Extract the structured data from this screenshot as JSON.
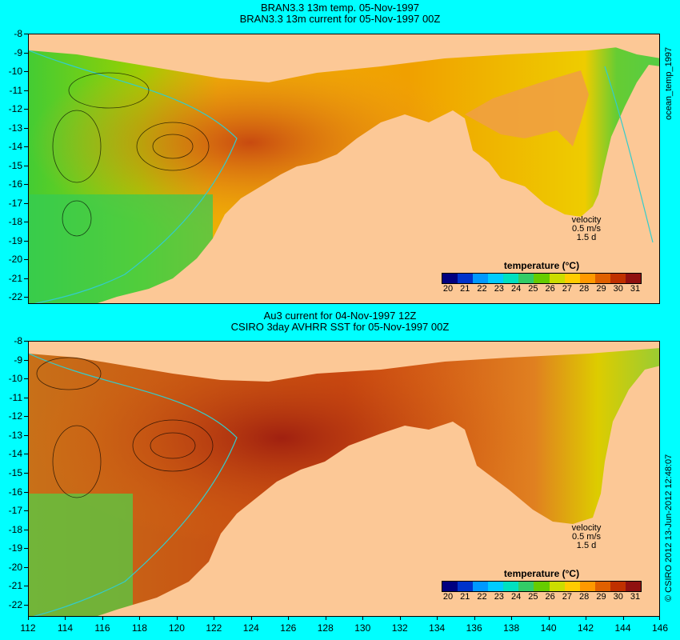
{
  "top_panel": {
    "title_line1": "BRAN3.3 13m temp. 05-Nov-1997",
    "title_line2": "BRAN3.3 13m current for 05-Nov-1997 00Z",
    "side_label": "ocean_temp_1997",
    "legend_title": "temperature (°C)",
    "velocity_label": "velocity",
    "velocity_value": "0.5 m/s",
    "velocity_time": "1.5 d"
  },
  "bottom_panel": {
    "title_line1": "Au3 current for 04-Nov-1997 12Z",
    "title_line2": "CSIRO 3day AVHRR SST for 05-Nov-1997 00Z",
    "side_label": "© CSIRO 2012  13-Jun-2012 12:48:07",
    "legend_title": "temperature (°C)",
    "velocity_label": "velocity",
    "velocity_value": "0.5 m/s",
    "velocity_time": "1.5 d"
  },
  "y_axis_labels": [
    "-8",
    "-9",
    "-10",
    "-11",
    "-12",
    "-13",
    "-14",
    "-15",
    "-16",
    "-17",
    "-18",
    "-19",
    "-20",
    "-21",
    "-22"
  ],
  "x_axis_labels": [
    "112",
    "114",
    "116",
    "118",
    "120",
    "122",
    "124",
    "126",
    "128",
    "130",
    "132",
    "134",
    "136",
    "138",
    "140",
    "142",
    "144",
    "146"
  ],
  "legend_ticks": [
    "20",
    "21",
    "22",
    "23",
    "24",
    "25",
    "26",
    "27",
    "28",
    "29",
    "30",
    "31"
  ],
  "colorbar_colors": [
    "#000080",
    "#0033cc",
    "#0099ff",
    "#00ccff",
    "#00e0c0",
    "#33cc66",
    "#66cc00",
    "#ccdd00",
    "#ffcc00",
    "#ff9900",
    "#e06000",
    "#c03000",
    "#901010"
  ],
  "colors": {
    "land": "#fcc896",
    "background": "#00ffff"
  }
}
